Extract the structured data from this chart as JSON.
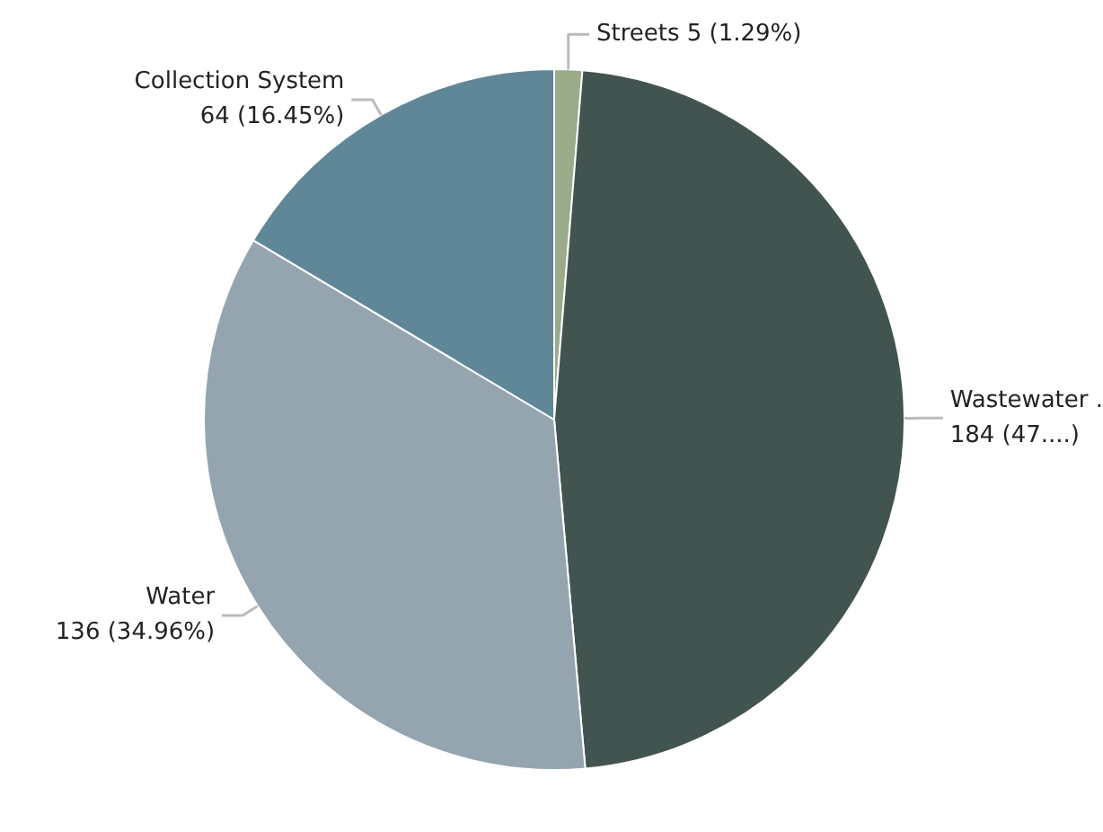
{
  "chart_data": {
    "type": "pie",
    "categories": [
      "Streets",
      "Wastewater .",
      "Water",
      "Collection System"
    ],
    "values": [
      5,
      184,
      136,
      64
    ],
    "colors": [
      "#9aab8a",
      "#425450",
      "#95a5b0",
      "#5f8797"
    ],
    "value_labels": [
      "5 (1.29%)",
      "184 (47....)",
      "136 (34.96%)",
      "64 (16.45%)"
    ]
  }
}
